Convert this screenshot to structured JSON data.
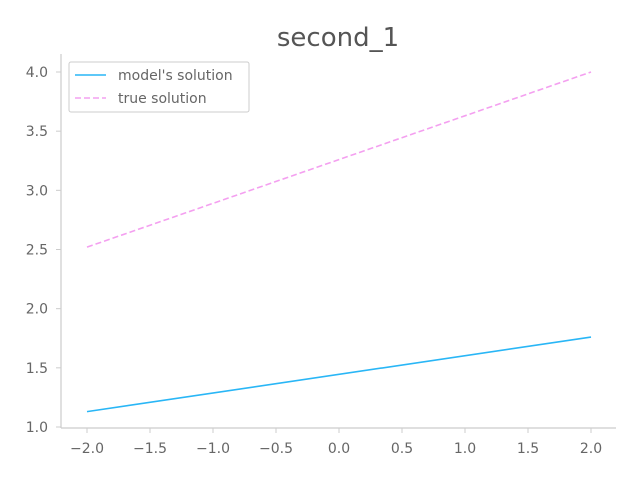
{
  "chart_data": {
    "type": "line",
    "title": "second_1",
    "xlabel": "",
    "ylabel": "",
    "xlim": [
      -2.2,
      2.2
    ],
    "ylim": [
      1.0,
      4.15
    ],
    "grid": false,
    "legend_placement": "top-left",
    "x_ticks": [
      "−2.0",
      "−1.5",
      "−1.0",
      "−0.5",
      "0.0",
      "0.5",
      "1.0",
      "1.5",
      "2.0"
    ],
    "x_tick_values": [
      -2.0,
      -1.5,
      -1.0,
      -0.5,
      0.0,
      0.5,
      1.0,
      1.5,
      2.0
    ],
    "y_ticks": [
      "1.0",
      "1.5",
      "2.0",
      "2.5",
      "3.0",
      "3.5",
      "4.0"
    ],
    "y_tick_values": [
      1.0,
      1.5,
      2.0,
      2.5,
      3.0,
      3.5,
      4.0
    ],
    "series": [
      {
        "name": "model's solution",
        "style": "solid",
        "color": "#29b6f6",
        "x": [
          -2.0,
          2.0
        ],
        "y": [
          1.13,
          1.76
        ]
      },
      {
        "name": "true solution",
        "style": "dashed",
        "color": "#f4a0f0",
        "x": [
          -2.0,
          2.0
        ],
        "y": [
          2.52,
          4.0
        ]
      }
    ]
  }
}
